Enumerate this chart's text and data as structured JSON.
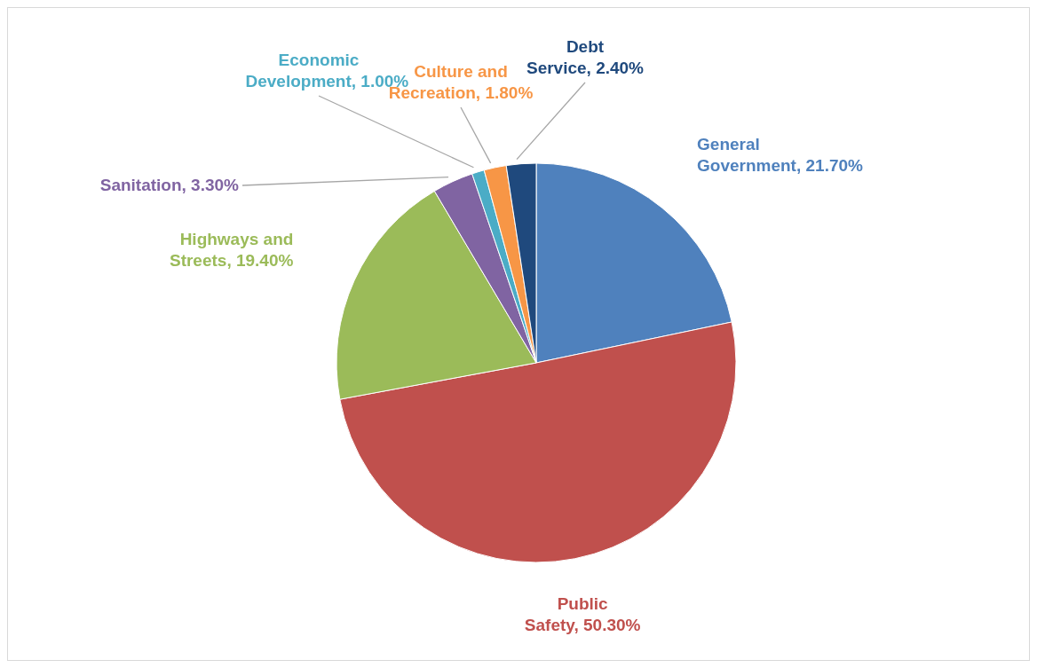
{
  "chart_data": {
    "type": "pie",
    "categories": [
      "General Government",
      "Public Safety",
      "Highways and Streets",
      "Sanitation",
      "Economic Development",
      "Culture and Recreation",
      "Debt Service"
    ],
    "values": [
      21.7,
      50.3,
      19.4,
      3.3,
      1.0,
      1.8,
      2.4
    ],
    "value_labels": [
      "21.70%",
      "50.30%",
      "19.40%",
      "3.30%",
      "1.00%",
      "1.80%",
      "2.40%"
    ],
    "colors": [
      "#4f81bd",
      "#c0504d",
      "#9bbb59",
      "#8064a2",
      "#4bacc6",
      "#f79646",
      "#1f497d"
    ]
  }
}
